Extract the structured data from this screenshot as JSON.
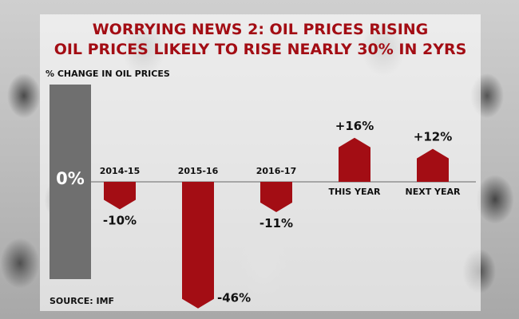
{
  "title_line1": "WORRYING NEWS 2: OIL PRICES RISING",
  "title_line2": "OIL PRICES LIKELY TO RISE NEARLY 30% IN 2YRS",
  "ylabel": "% CHANGE IN OIL PRICES",
  "zero_label": "0%",
  "source": "SOURCE: IMF",
  "colors": {
    "bar": "#a30d14",
    "title": "#a30d14",
    "zero_bar": "#6f6f6f"
  },
  "chart_data": {
    "type": "bar",
    "title": "",
    "ylabel": "% CHANGE IN OIL PRICES",
    "categories": [
      "2014-15",
      "2015-16",
      "2016-17",
      "THIS YEAR",
      "NEXT YEAR"
    ],
    "values": [
      -10,
      -46,
      -11,
      16,
      12
    ],
    "value_labels": [
      "-10%",
      "-46%",
      "-11%",
      "+16%",
      "+12%"
    ],
    "ylim": [
      -50,
      20
    ],
    "grid": false,
    "legend": "none"
  }
}
